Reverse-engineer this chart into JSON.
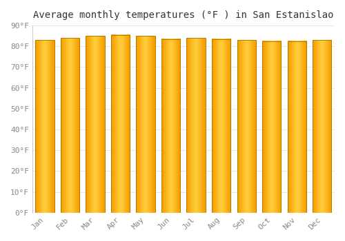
{
  "title": "Average monthly temperatures (°F ) in San Estanislao",
  "months": [
    "Jan",
    "Feb",
    "Mar",
    "Apr",
    "May",
    "Jun",
    "Jul",
    "Aug",
    "Sep",
    "Oct",
    "Nov",
    "Dec"
  ],
  "values": [
    83,
    84,
    85,
    85.5,
    85,
    83.5,
    84,
    83.5,
    83,
    82.5,
    82.5,
    83
  ],
  "bar_color_center": "#FFD040",
  "bar_color_edge": "#F5A000",
  "bar_outline_color": "#B87800",
  "bar_edge_color": "#FFFFFF",
  "background_color": "#FFFFFF",
  "plot_bg_color": "#FFFFFF",
  "grid_color": "#E0E0E0",
  "text_color": "#888888",
  "title_color": "#333333",
  "ylim": [
    0,
    90
  ],
  "yticks": [
    0,
    10,
    20,
    30,
    40,
    50,
    60,
    70,
    80,
    90
  ],
  "ytick_labels": [
    "0°F",
    "10°F",
    "20°F",
    "30°F",
    "40°F",
    "50°F",
    "60°F",
    "70°F",
    "80°F",
    "90°F"
  ],
  "title_fontsize": 10,
  "tick_fontsize": 8,
  "bar_width": 0.75,
  "figsize": [
    5.0,
    3.5
  ],
  "dpi": 100
}
